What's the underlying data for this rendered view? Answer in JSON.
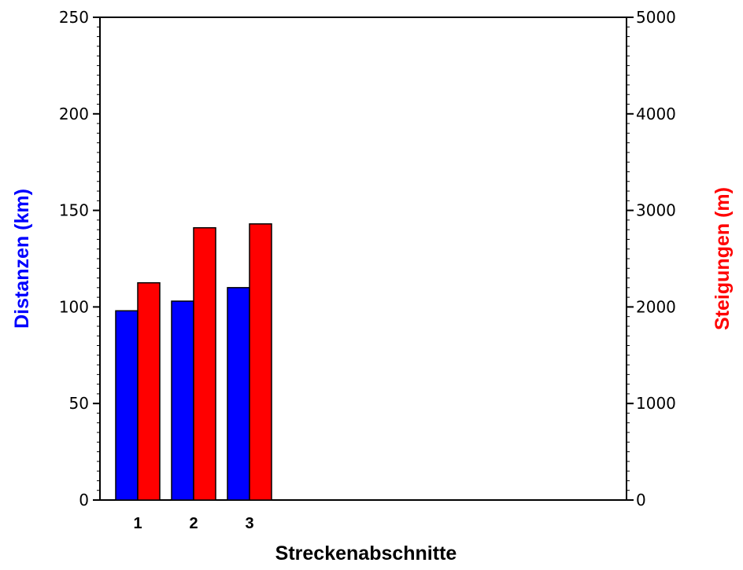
{
  "chart_data": {
    "type": "bar",
    "categories": [
      "1",
      "2",
      "3"
    ],
    "xlabel": "Streckenabschnitte",
    "series": [
      {
        "axis": "left",
        "values": [
          98,
          103,
          110
        ],
        "color": "#0000ff"
      },
      {
        "axis": "right",
        "values": [
          2250,
          2820,
          2860
        ],
        "color": "#ff0000"
      }
    ],
    "y_left": {
      "label": "Distanzen (km)",
      "label_color": "#0000ff",
      "lim": [
        0,
        250
      ],
      "ticks": [
        "0",
        "50",
        "100",
        "150",
        "200",
        "250"
      ]
    },
    "y_right": {
      "label": "Steigungen (m)",
      "label_color": "#ff0000",
      "lim": [
        0,
        5000
      ],
      "ticks": [
        "0",
        "1000",
        "2000",
        "3000",
        "4000",
        "5000"
      ]
    },
    "grid": false
  }
}
